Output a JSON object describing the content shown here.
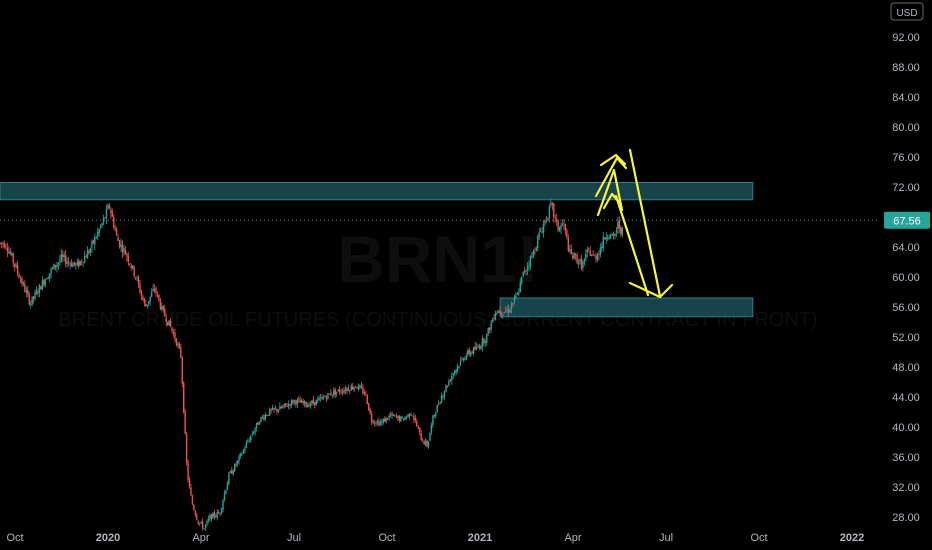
{
  "chart_data": {
    "type": "candlestick",
    "symbol_watermark": "BRN1!",
    "subtitle_watermark": "BRENT CRUDE OIL FUTURES (CONTINUOUS: CURRENT CONTRACT IN FRONT)",
    "currency": "USD",
    "last_price": "67.56",
    "ylim": [
      27,
      96
    ],
    "y_ticks": [
      "28.00",
      "32.00",
      "36.00",
      "40.00",
      "44.00",
      "48.00",
      "52.00",
      "56.00",
      "60.00",
      "64.00",
      "68.00",
      "72.00",
      "76.00",
      "80.00",
      "84.00",
      "88.00",
      "92.00"
    ],
    "x_ticks": [
      {
        "label": "Oct",
        "t": 0,
        "bold": false
      },
      {
        "label": "2020",
        "t": 3,
        "bold": true
      },
      {
        "label": "Apr",
        "t": 6,
        "bold": false
      },
      {
        "label": "Jul",
        "t": 9,
        "bold": false
      },
      {
        "label": "Oct",
        "t": 12,
        "bold": false
      },
      {
        "label": "2021",
        "t": 15,
        "bold": true
      },
      {
        "label": "Apr",
        "t": 18,
        "bold": false
      },
      {
        "label": "Jul",
        "t": 21,
        "bold": false
      },
      {
        "label": "Oct",
        "t": 24,
        "bold": false
      },
      {
        "label": "2022",
        "t": 27,
        "bold": true
      }
    ],
    "price_path": [
      [
        -0.3,
        64.5
      ],
      [
        0.2,
        59.5
      ],
      [
        0.5,
        56.5
      ],
      [
        1.0,
        60.0
      ],
      [
        1.5,
        62.5
      ],
      [
        2.0,
        61.5
      ],
      [
        2.4,
        63.5
      ],
      [
        2.8,
        67.0
      ],
      [
        3.05,
        69.5
      ],
      [
        3.3,
        65.0
      ],
      [
        3.6,
        63.0
      ],
      [
        3.9,
        60.0
      ],
      [
        4.2,
        56.0
      ],
      [
        4.5,
        58.5
      ],
      [
        4.75,
        55.5
      ],
      [
        5.0,
        53.5
      ],
      [
        5.2,
        51.5
      ],
      [
        5.35,
        49.5
      ],
      [
        5.55,
        34.0
      ],
      [
        5.7,
        30.0
      ],
      [
        5.9,
        27.5
      ],
      [
        6.1,
        26.5
      ],
      [
        6.3,
        28.0
      ],
      [
        6.6,
        28.5
      ],
      [
        6.9,
        33.5
      ],
      [
        7.2,
        35.5
      ],
      [
        7.5,
        38.0
      ],
      [
        7.9,
        41.0
      ],
      [
        8.2,
        42.0
      ],
      [
        8.6,
        42.5
      ],
      [
        9.0,
        43.5
      ],
      [
        9.4,
        43.0
      ],
      [
        9.8,
        43.5
      ],
      [
        10.2,
        44.5
      ],
      [
        10.6,
        45.0
      ],
      [
        11.0,
        45.5
      ],
      [
        11.3,
        44.5
      ],
      [
        11.5,
        41.0
      ],
      [
        11.8,
        40.5
      ],
      [
        12.1,
        41.5
      ],
      [
        12.5,
        41.0
      ],
      [
        12.8,
        42.0
      ],
      [
        13.1,
        38.5
      ],
      [
        13.3,
        37.5
      ],
      [
        13.5,
        41.5
      ],
      [
        13.8,
        44.5
      ],
      [
        14.1,
        47.0
      ],
      [
        14.5,
        49.5
      ],
      [
        14.9,
        50.5
      ],
      [
        15.2,
        52.0
      ],
      [
        15.5,
        55.5
      ],
      [
        15.9,
        55.5
      ],
      [
        16.2,
        57.5
      ],
      [
        16.4,
        60.5
      ],
      [
        16.7,
        63.0
      ],
      [
        16.9,
        65.5
      ],
      [
        17.1,
        67.5
      ],
      [
        17.3,
        69.5
      ],
      [
        17.5,
        66.5
      ],
      [
        17.7,
        67.0
      ],
      [
        17.9,
        63.0
      ],
      [
        18.1,
        62.5
      ],
      [
        18.3,
        61.5
      ],
      [
        18.5,
        63.5
      ],
      [
        18.7,
        62.5
      ],
      [
        18.9,
        64.0
      ],
      [
        19.1,
        66.0
      ],
      [
        19.3,
        65.0
      ],
      [
        19.45,
        67.0
      ],
      [
        19.6,
        66.0
      ]
    ],
    "resistance_zone": {
      "from": 70.3,
      "to": 72.6,
      "t_start": -0.5,
      "t_end": 23.8
    },
    "support_zone": {
      "from": 54.7,
      "to": 57.2,
      "t_start": 15.65,
      "t_end": 23.8
    },
    "zone_color": "#1b5058",
    "zone_border": "#2c7f8a",
    "up_color": "#26a69a",
    "down_color": "#ef5350",
    "price_line_color": "#26a69a",
    "annotation_color": "#f5f542"
  }
}
